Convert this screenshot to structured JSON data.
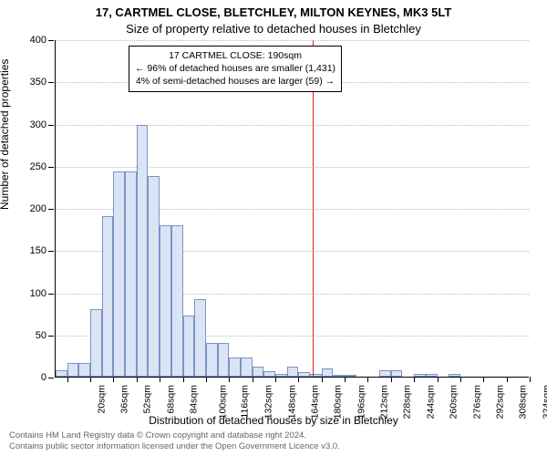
{
  "titles": {
    "line1": "17, CARTMEL CLOSE, BLETCHLEY, MILTON KEYNES, MK3 5LT",
    "line2": "Size of property relative to detached houses in Bletchley"
  },
  "axes": {
    "ylabel": "Number of detached properties",
    "xlabel": "Distribution of detached houses by size in Bletchley",
    "ylim": [
      0,
      400
    ],
    "ytick_step": 50,
    "x_start": 20,
    "x_step": 16,
    "x_count": 21
  },
  "histogram": {
    "type": "histogram",
    "bar_fill": "#dbe4f4",
    "bar_stroke": "#7a93c8",
    "values": [
      8,
      16,
      16,
      80,
      190,
      243,
      243,
      298,
      238,
      180,
      180,
      72,
      92,
      40,
      40,
      23,
      23,
      12,
      6,
      3,
      12,
      5,
      3,
      10,
      2,
      2,
      0,
      0,
      8,
      8,
      0,
      3,
      3,
      0,
      3,
      0,
      0,
      0,
      0,
      0,
      0
    ]
  },
  "reference": {
    "x_sqm": 190,
    "color": "#e02020"
  },
  "annotation": {
    "line1": "17 CARTMEL CLOSE: 190sqm",
    "line2": "← 96% of detached houses are smaller (1,431)",
    "line3": "4% of semi-detached houses are larger (59) →"
  },
  "footer": {
    "line1": "Contains HM Land Registry data © Crown copyright and database right 2024.",
    "line2": "Contains public sector information licensed under the Open Government Licence v3.0."
  },
  "style": {
    "background": "#ffffff",
    "grid_color": "#bbbbbb",
    "text_color": "#000000",
    "footer_color": "#666666",
    "title_fontsize": 13,
    "label_fontsize": 12,
    "tick_fontsize": 11,
    "anno_fontsize": 10.5
  }
}
